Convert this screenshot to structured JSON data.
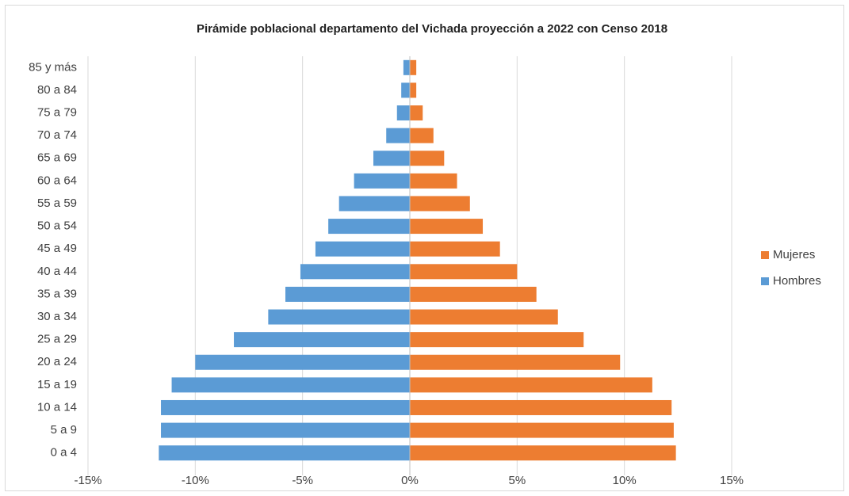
{
  "chart_data": {
    "type": "bar",
    "orientation": "horizontal",
    "stacked": true,
    "title": "Pirámide poblacional departamento del Vichada proyección a 2022 con Censo 2018",
    "categories": [
      "0 a 4",
      "5 a 9",
      "10 a 14",
      "15 a 19",
      "20 a 24",
      "25 a 29",
      "30 a 34",
      "35 a 39",
      "40 a 44",
      "45 a 49",
      "50 a 54",
      "55 a 59",
      "60 a 64",
      "65 a 69",
      "70 a 74",
      "75 a 79",
      "80 a 84",
      "85 y más"
    ],
    "series": [
      {
        "name": "Hombres",
        "color": "#5b9bd5",
        "values": [
          -11.7,
          -11.6,
          -11.6,
          -11.1,
          -10.0,
          -8.2,
          -6.6,
          -5.8,
          -5.1,
          -4.4,
          -3.8,
          -3.3,
          -2.6,
          -1.7,
          -1.1,
          -0.6,
          -0.4,
          -0.3
        ]
      },
      {
        "name": "Mujeres",
        "color": "#ed7d31",
        "values": [
          12.4,
          12.3,
          12.2,
          11.3,
          9.8,
          8.1,
          6.9,
          5.9,
          5.0,
          4.2,
          3.4,
          2.8,
          2.2,
          1.6,
          1.1,
          0.6,
          0.3,
          0.3
        ]
      }
    ],
    "xlim": [
      -15,
      15
    ],
    "xticks": [
      {
        "value": -15,
        "label": "-15%"
      },
      {
        "value": -10,
        "label": "-10%"
      },
      {
        "value": -5,
        "label": "-5%"
      },
      {
        "value": 0,
        "label": "0%"
      },
      {
        "value": 5,
        "label": "5%"
      },
      {
        "value": 10,
        "label": "10%"
      },
      {
        "value": 15,
        "label": "15%"
      }
    ],
    "grid": true,
    "legend": "right"
  }
}
